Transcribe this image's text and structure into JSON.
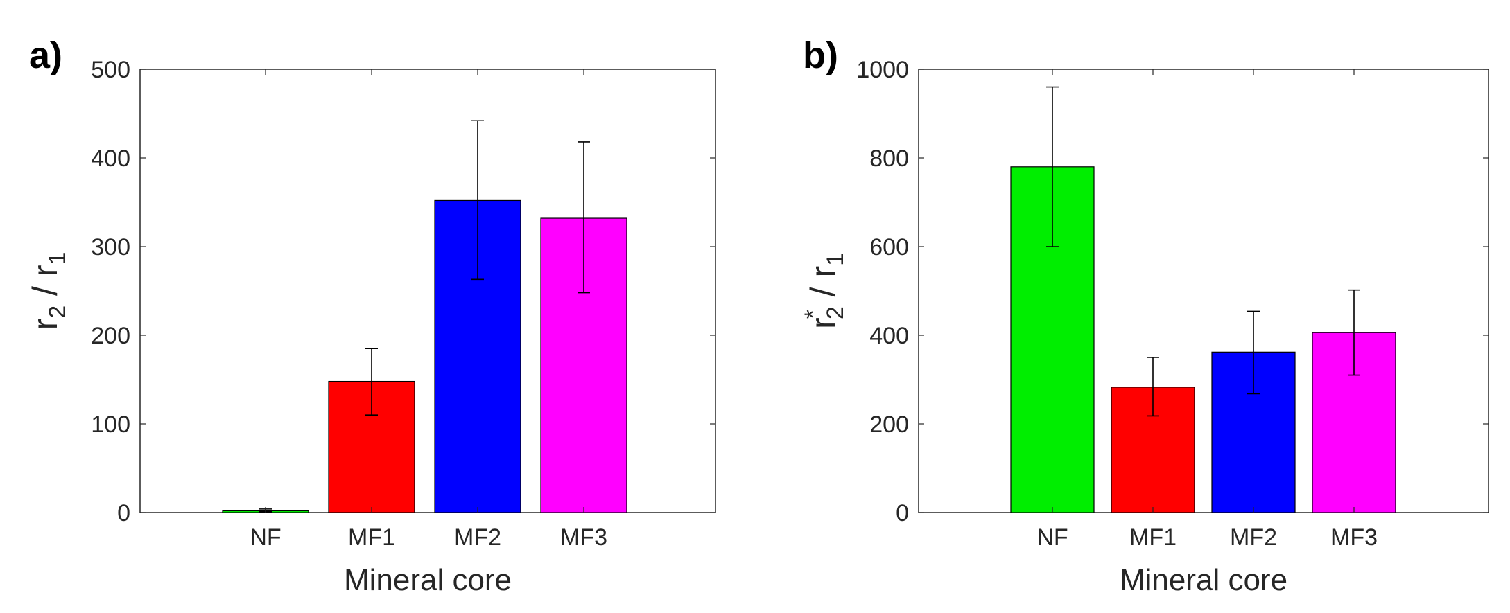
{
  "chart_data": [
    {
      "type": "bar",
      "panel_label": "a)",
      "categories": [
        "NF",
        "MF1",
        "MF2",
        "MF3"
      ],
      "values": [
        2,
        148,
        352,
        332
      ],
      "error_low": [
        1,
        110,
        263,
        248
      ],
      "error_high": [
        4,
        185,
        442,
        418
      ],
      "colors": [
        "#00ee00",
        "#ff0000",
        "#0000ff",
        "#ff00ff"
      ],
      "xlabel": "Mineral core",
      "ylabel": {
        "base": "r",
        "sub": "2",
        "sep": " / ",
        "base2": "r",
        "sub2": "1"
      },
      "ylim": [
        0,
        500
      ],
      "yticks": [
        0,
        100,
        200,
        300,
        400,
        500
      ],
      "ytick_labels": [
        "0",
        "100",
        "200",
        "300",
        "400",
        "500"
      ],
      "grid": false
    },
    {
      "type": "bar",
      "panel_label": "b)",
      "categories": [
        "NF",
        "MF1",
        "MF2",
        "MF3"
      ],
      "values": [
        780,
        283,
        362,
        406
      ],
      "error_low": [
        600,
        218,
        268,
        310
      ],
      "error_high": [
        960,
        350,
        454,
        502
      ],
      "colors": [
        "#00ee00",
        "#ff0000",
        "#0000ff",
        "#ff00ff"
      ],
      "xlabel": "Mineral core",
      "ylabel": {
        "base": "r",
        "sup": "*",
        "sub": "2",
        "sep": " / ",
        "base2": "r",
        "sub2": "1"
      },
      "ylim": [
        0,
        1000
      ],
      "yticks": [
        0,
        200,
        400,
        600,
        800,
        1000
      ],
      "ytick_labels": [
        "0",
        "200",
        "400",
        "600",
        "800",
        "1000"
      ],
      "grid": false
    }
  ]
}
